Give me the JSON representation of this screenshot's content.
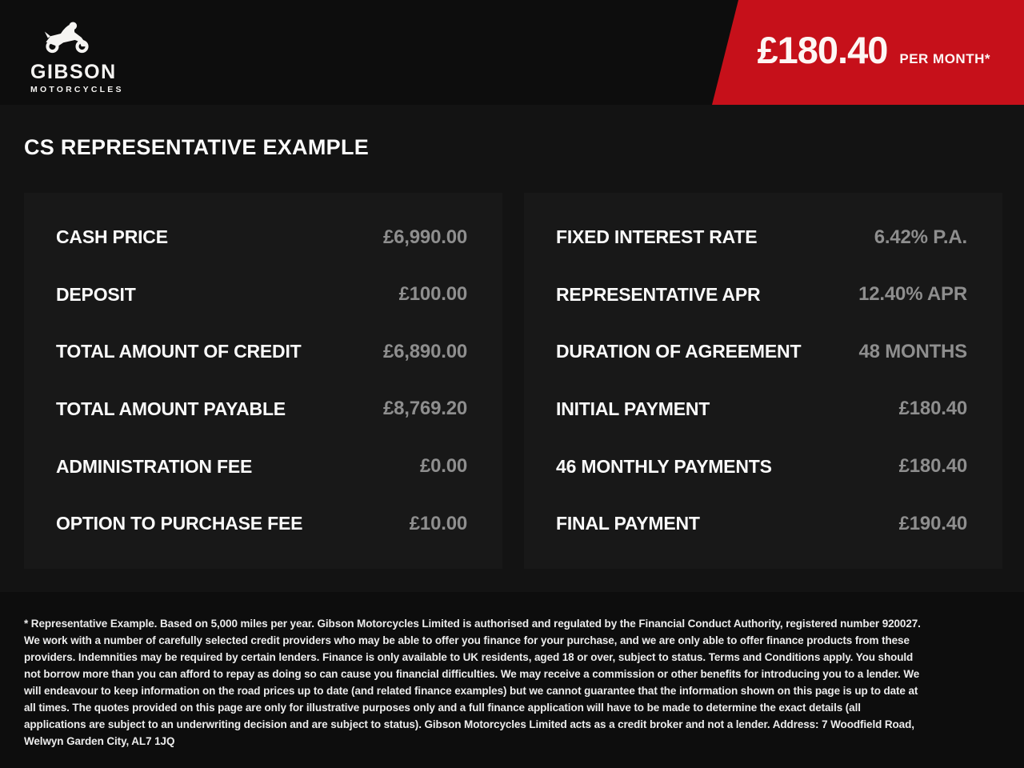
{
  "brand": {
    "name": "GIBSON",
    "tagline": "MOTORCYCLES",
    "logo_icon": "motorcycle-rider-icon"
  },
  "banner": {
    "amount": "£180.40",
    "period": "PER MONTH*"
  },
  "heading": "CS REPRESENTATIVE EXAMPLE",
  "finance": {
    "left": [
      {
        "label": "CASH PRICE",
        "value": "£6,990.00"
      },
      {
        "label": "DEPOSIT",
        "value": "£100.00"
      },
      {
        "label": "TOTAL AMOUNT OF CREDIT",
        "value": "£6,890.00"
      },
      {
        "label": "TOTAL AMOUNT PAYABLE",
        "value": "£8,769.20"
      },
      {
        "label": "ADMINISTRATION FEE",
        "value": "£0.00"
      },
      {
        "label": "OPTION TO PURCHASE FEE",
        "value": "£10.00"
      }
    ],
    "right": [
      {
        "label": "FIXED INTEREST RATE",
        "value": "6.42% P.A."
      },
      {
        "label": "REPRESENTATIVE APR",
        "value": "12.40% APR"
      },
      {
        "label": "DURATION OF AGREEMENT",
        "value": "48 MONTHS"
      },
      {
        "label": "INITIAL PAYMENT",
        "value": "£180.40"
      },
      {
        "label": "46 MONTHLY PAYMENTS",
        "value": "£180.40"
      },
      {
        "label": "FINAL PAYMENT",
        "value": "£190.40"
      }
    ]
  },
  "footer": {
    "disclaimer": "* Representative Example. Based on 5,000 miles per year. Gibson Motorcycles Limited is authorised and regulated by the Financial Conduct Authority, registered number 920027. We work with a number of carefully selected credit providers who may be able to offer you finance for your purchase, and we are only able to offer finance products from these providers. Indemnities may be required by certain lenders. Finance is only available to UK residents, aged 18 or over, subject to status. Terms and Conditions apply. You should not borrow more than you can afford to repay as doing so can cause you financial difficulties. We may receive a commission or other benefits for introducing you to a lender. We will endeavour to keep information on the road prices up to date (and related finance examples) but we cannot guarantee that the information shown on this page is up to date at all times. The quotes provided on this page are only for illustrative purposes only and a full finance application will have to be made to determine the exact details (all applications are subject to an underwriting decision and are subject to status). Gibson Motorcycles Limited acts as a credit broker and not a lender. Address: 7 Woodfield Road, Welwyn Garden City, AL7 1JQ"
  },
  "colors": {
    "accent_red": "#c6101a",
    "page_background": "#131313",
    "header_background": "#0d0d0d",
    "panel_background": "#181818",
    "value_gray": "#8e8e8e"
  }
}
